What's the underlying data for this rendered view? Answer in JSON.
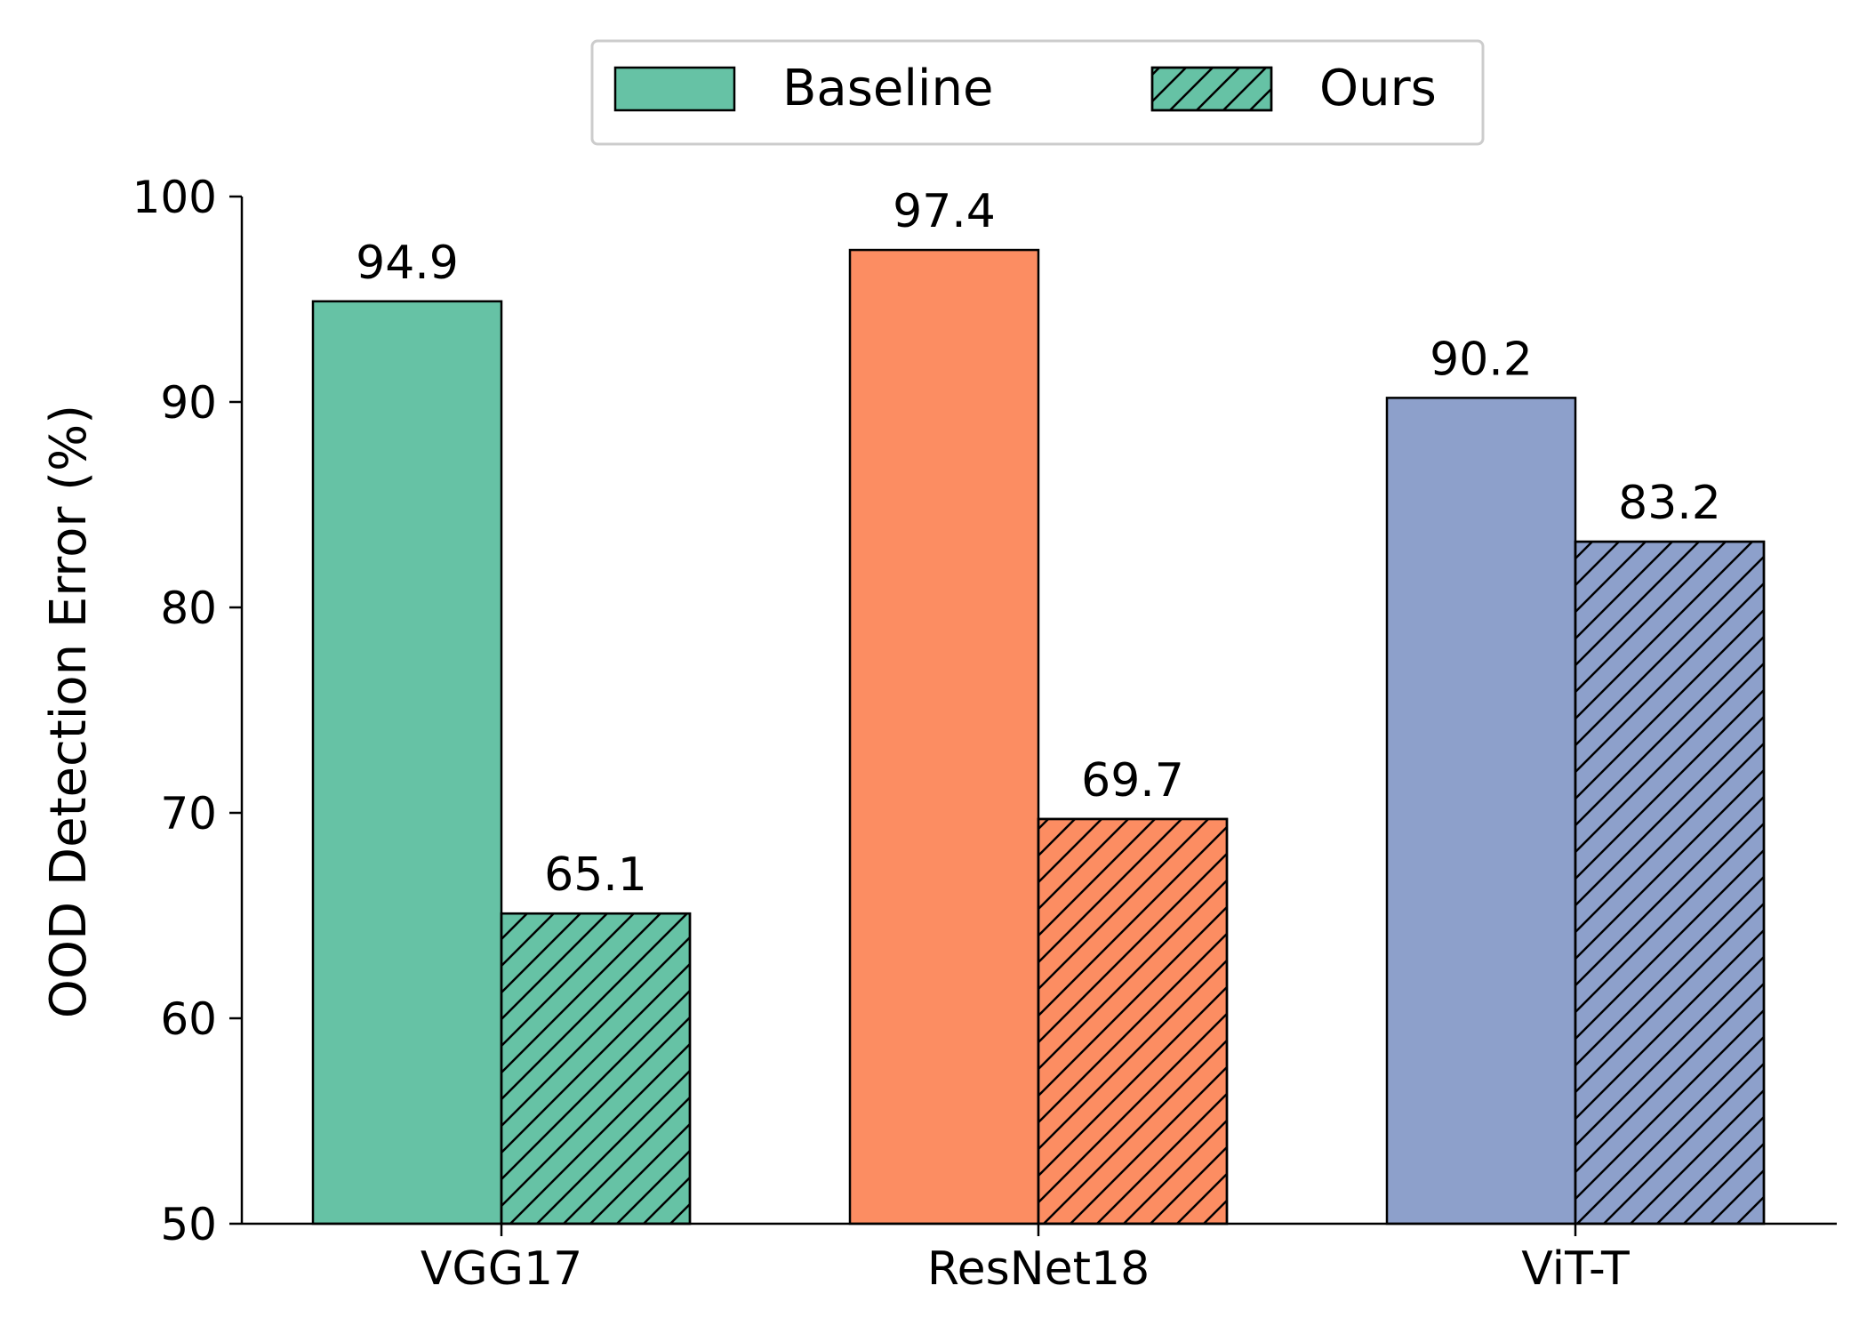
{
  "chart_data": {
    "type": "bar",
    "title": "",
    "xlabel": "",
    "ylabel": "OOD Detection Error (%)",
    "ylim": [
      50,
      100
    ],
    "yticks": [
      50,
      60,
      70,
      80,
      90,
      100
    ],
    "grid": false,
    "legend_position": "top-center",
    "categories": [
      "VGG17",
      "ResNet18",
      "ViT-T"
    ],
    "category_colors": [
      "#66c2a5",
      "#fc8d62",
      "#8da0cb"
    ],
    "series": [
      {
        "name": "Baseline",
        "values": [
          94.9,
          97.4,
          90.2
        ],
        "hatch": "none"
      },
      {
        "name": "Ours",
        "values": [
          65.1,
          69.7,
          83.2
        ],
        "hatch": "diagonal"
      }
    ],
    "legend_patch_color": "#66c2a5"
  }
}
